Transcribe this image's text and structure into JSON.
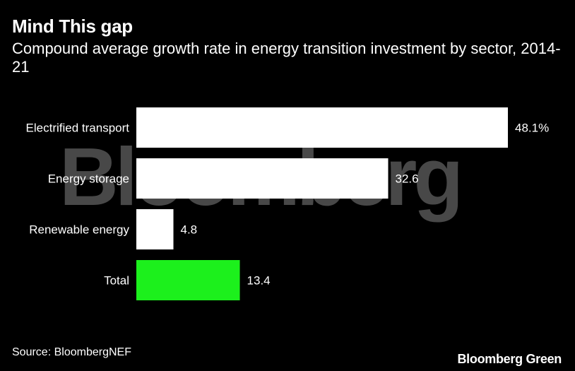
{
  "header": {
    "title": "Mind This gap",
    "subtitle": "Compound average growth rate in energy transition investment by sector, 2014-21"
  },
  "watermark": "Bloomberg",
  "footer": {
    "source": "Source: BloombergNEF",
    "brand": "Bloomberg Green"
  },
  "colors": {
    "background": "#000000",
    "bar_default": "#ffffff",
    "bar_highlight": "#1cf01c",
    "text": "#ffffff",
    "watermark": "#5a5a5a"
  },
  "chart_data": {
    "type": "bar",
    "orientation": "horizontal",
    "title": "Mind This gap",
    "subtitle": "Compound average growth rate in energy transition investment by sector, 2014-21",
    "xlabel": "",
    "ylabel": "",
    "unit": "%",
    "grid": false,
    "xlim": [
      0,
      48.1
    ],
    "categories": [
      "Electrified transport",
      "Energy storage",
      "Renewable energy",
      "Total"
    ],
    "values": [
      48.1,
      32.6,
      4.8,
      13.4
    ],
    "value_labels": [
      "48.1%",
      "32.6",
      "4.8",
      "13.4"
    ],
    "highlight": [
      "Total"
    ]
  }
}
